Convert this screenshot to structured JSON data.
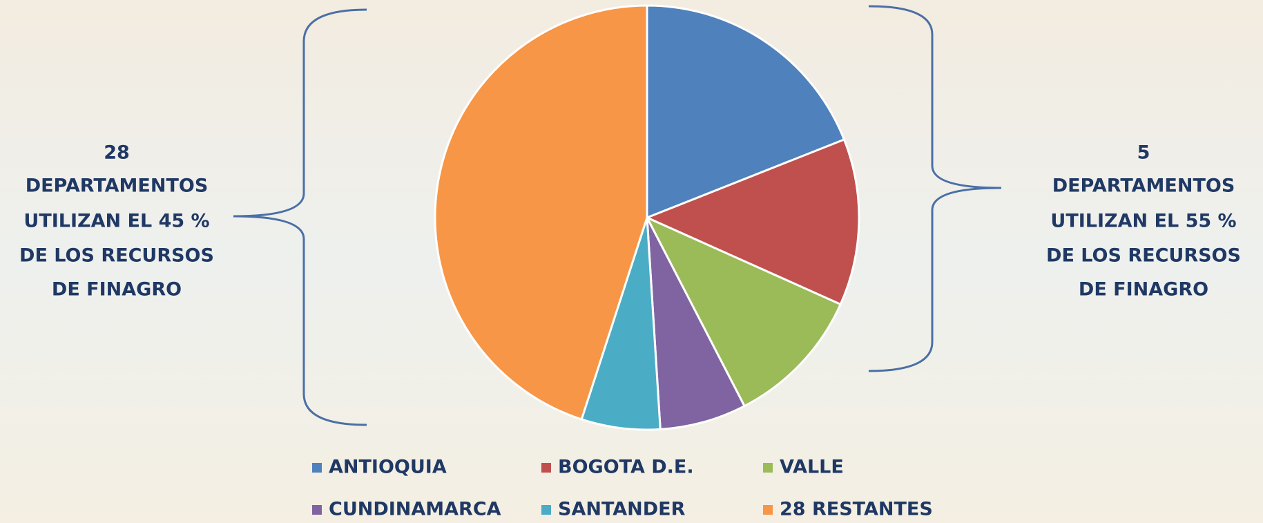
{
  "chart_data": {
    "type": "pie",
    "categories": [
      "ANTIOQUIA",
      "BOGOTA D.E.",
      "VALLE",
      "CUNDINAMARCA",
      "SANTANDER",
      "28 RESTANTES"
    ],
    "values": [
      19,
      12.7,
      10.7,
      6.6,
      6,
      45
    ],
    "colors": [
      "#4f81bd",
      "#c0504d",
      "#9bbb59",
      "#8064a2",
      "#4bacc6",
      "#f79646"
    ],
    "annotations": [
      [
        "28",
        "DEPARTAMENTOS",
        "UTILIZAN EL 45 %",
        "DE LOS RECURSOS",
        "DE FINAGRO"
      ],
      [
        "5",
        "DEPARTAMENTOS",
        "UTILIZAN EL 55 %",
        "DE LOS RECURSOS",
        "DE FINAGRO"
      ]
    ]
  }
}
